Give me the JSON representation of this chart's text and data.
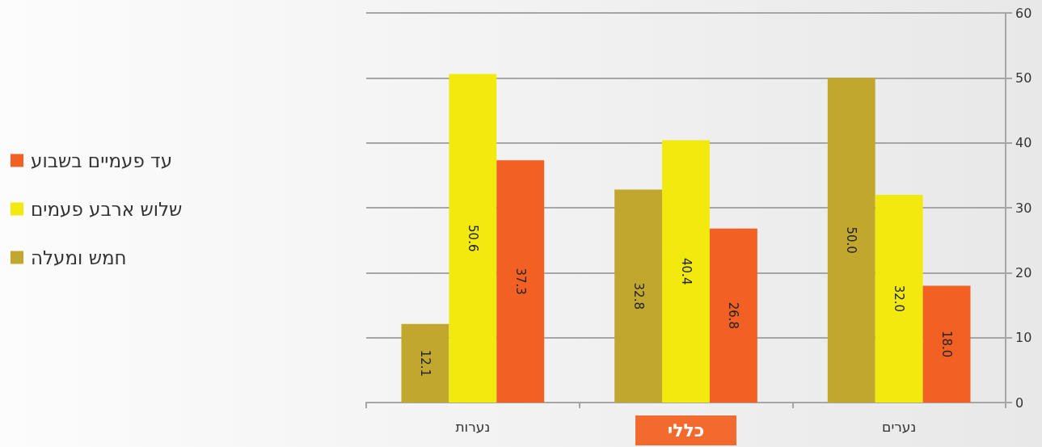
{
  "chart_data": {
    "type": "bar",
    "categories": [
      "נערות",
      "כללי",
      "נערים"
    ],
    "series": [
      {
        "name": "עד פעמיים בשבוע",
        "color": "#f26023",
        "values": [
          37.3,
          26.8,
          18.0
        ],
        "value_labels": [
          "37.3",
          "26.8",
          "18.0"
        ]
      },
      {
        "name": "שלוש ארבע פעמים",
        "color": "#f2e90f",
        "values": [
          50.6,
          40.4,
          32.0
        ],
        "value_labels": [
          "50.6",
          "40.4",
          "32.0"
        ]
      },
      {
        "name": "חמש ומעלה",
        "color": "#c2a72f",
        "values": [
          12.1,
          32.8,
          50.0
        ],
        "value_labels": [
          "12.1",
          "32.8",
          "50.0"
        ]
      }
    ],
    "ylim": [
      0,
      60
    ],
    "yticks": [
      0,
      10,
      20,
      30,
      40,
      50,
      60
    ],
    "grid": "y",
    "legend": "left"
  }
}
